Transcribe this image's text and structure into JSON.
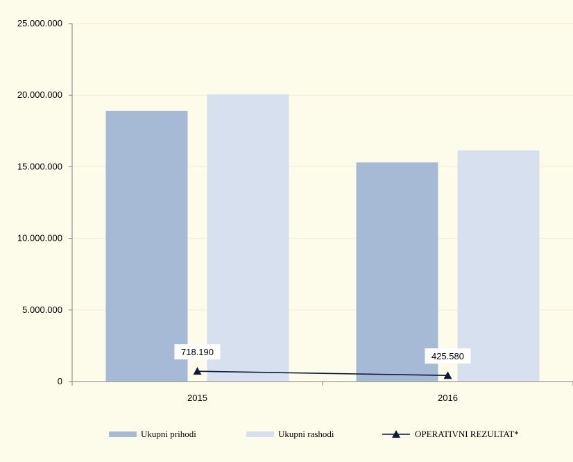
{
  "chart_data": {
    "type": "bar",
    "categories": [
      "2015",
      "2016"
    ],
    "series": [
      {
        "name": "Ukupni prihodi",
        "kind": "bar",
        "color": "#a7bad5",
        "values": [
          18900000,
          15300000
        ]
      },
      {
        "name": "Ukupni rashodi",
        "kind": "bar",
        "color": "#d6e0ef",
        "values": [
          20050000,
          16150000
        ]
      },
      {
        "name": "OPERATIVNI REZULTAT*",
        "kind": "line",
        "marker": "triangle",
        "color": "#0d1a3a",
        "values": [
          718190,
          425580
        ],
        "labels": [
          "718.190",
          "425.580"
        ]
      }
    ],
    "ylim": [
      0,
      25000000
    ],
    "yticks": [
      0,
      5000000,
      10000000,
      15000000,
      20000000,
      25000000
    ],
    "ytick_labels": [
      "0",
      "5.000.000",
      "10.000.000",
      "15.000.000",
      "20.000.000",
      "25.000.000"
    ],
    "grid": true,
    "legend": "bottom",
    "title": "",
    "xlabel": "",
    "ylabel": ""
  }
}
